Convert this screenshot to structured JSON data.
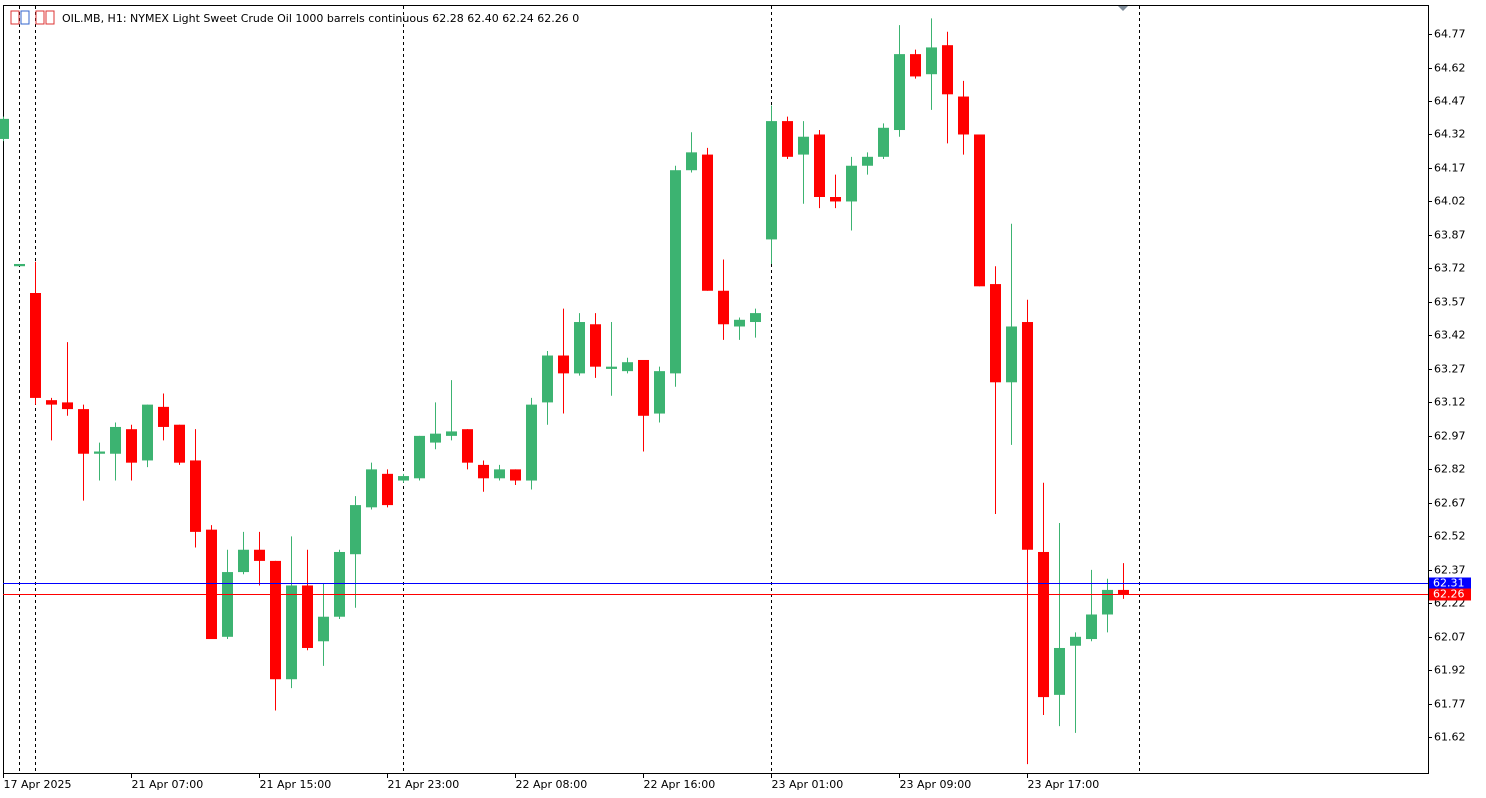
{
  "chart_data": {
    "type": "candlestick",
    "title": "OIL.MB, H1:  NYMEX Light Sweet Crude Oil 1000 barrels continuous  62.28 62.40 62.24 62.26  0",
    "categories": [
      "17 Apr 2025",
      null,
      null,
      null,
      null,
      null,
      null,
      null,
      "21 Apr 07:00",
      null,
      null,
      null,
      null,
      null,
      null,
      null,
      "21 Apr 15:00",
      null,
      null,
      null,
      null,
      null,
      null,
      null,
      "21 Apr 23:00",
      null,
      null,
      null,
      null,
      null,
      null,
      null,
      "22 Apr 08:00",
      null,
      null,
      null,
      null,
      null,
      null,
      null,
      "22 Apr 16:00",
      null,
      null,
      null,
      null,
      null,
      null,
      null,
      "23 Apr 01:00",
      null,
      null,
      null,
      null,
      null,
      null,
      null,
      "23 Apr 09:00",
      null,
      null,
      null,
      null,
      null,
      null,
      null,
      "23 Apr 17:00",
      null,
      null,
      null,
      null,
      null,
      null
    ],
    "open": [
      64.3,
      63.73,
      63.61,
      63.13,
      63.12,
      63.09,
      62.89,
      62.89,
      63.0,
      62.86,
      63.1,
      63.02,
      62.86,
      62.55,
      62.07,
      62.36,
      62.46,
      62.41,
      61.88,
      62.3,
      62.05,
      62.16,
      62.44,
      62.65,
      62.8,
      62.77,
      62.78,
      62.94,
      62.97,
      63.0,
      62.84,
      62.78,
      62.82,
      62.77,
      63.12,
      63.33,
      63.25,
      63.47,
      63.27,
      63.26,
      63.31,
      63.07,
      63.25,
      64.16,
      64.23,
      63.62,
      63.46,
      63.48,
      63.85,
      64.38,
      64.23,
      64.32,
      64.04,
      64.02,
      64.18,
      64.22,
      64.34,
      64.68,
      64.59,
      64.72,
      64.49,
      64.32,
      63.65,
      63.21,
      63.48,
      62.45,
      61.81,
      62.03,
      62.06,
      62.17,
      62.28
    ],
    "high": [
      64.4,
      63.73,
      63.75,
      63.14,
      63.39,
      63.11,
      62.94,
      63.03,
      63.02,
      63.11,
      63.16,
      63.02,
      63.0,
      62.57,
      62.46,
      62.54,
      62.54,
      62.41,
      62.52,
      62.46,
      62.31,
      62.46,
      62.7,
      62.85,
      62.82,
      62.8,
      62.97,
      63.12,
      63.22,
      63.0,
      62.86,
      62.84,
      62.82,
      63.14,
      63.35,
      63.54,
      63.52,
      63.52,
      63.48,
      63.32,
      63.31,
      63.28,
      64.18,
      64.33,
      64.26,
      63.76,
      63.5,
      63.54,
      64.45,
      64.4,
      64.38,
      64.34,
      64.14,
      64.22,
      64.24,
      64.37,
      64.81,
      64.7,
      64.84,
      64.78,
      64.56,
      64.32,
      63.73,
      63.92,
      63.58,
      62.76,
      62.58,
      62.09,
      62.37,
      62.33,
      62.4
    ],
    "low": [
      64.29,
      63.73,
      63.11,
      62.95,
      63.06,
      62.68,
      62.77,
      62.77,
      62.77,
      62.83,
      62.95,
      62.84,
      62.47,
      62.06,
      62.06,
      62.35,
      62.3,
      61.74,
      61.84,
      62.01,
      61.94,
      62.15,
      62.2,
      62.64,
      62.65,
      62.76,
      62.77,
      62.91,
      62.95,
      62.82,
      62.72,
      62.77,
      62.75,
      62.73,
      63.02,
      63.07,
      63.24,
      63.23,
      63.15,
      63.25,
      62.9,
      63.03,
      63.19,
      64.15,
      63.62,
      63.4,
      63.4,
      63.41,
      63.74,
      64.21,
      64.01,
      63.99,
      63.99,
      63.89,
      64.14,
      64.21,
      64.31,
      64.57,
      64.43,
      64.28,
      64.23,
      63.64,
      62.62,
      62.93,
      61.5,
      61.72,
      61.67,
      61.64,
      62.05,
      62.09,
      62.24
    ],
    "close": [
      64.39,
      63.74,
      63.14,
      63.11,
      63.09,
      62.89,
      62.9,
      63.01,
      62.85,
      63.11,
      63.01,
      62.85,
      62.54,
      62.06,
      62.36,
      62.46,
      62.41,
      61.88,
      62.3,
      62.02,
      62.16,
      62.45,
      62.66,
      62.82,
      62.66,
      62.79,
      62.97,
      62.98,
      62.99,
      62.85,
      62.78,
      62.82,
      62.77,
      63.11,
      63.33,
      63.25,
      63.48,
      63.28,
      63.28,
      63.3,
      63.06,
      63.26,
      64.16,
      64.24,
      63.62,
      63.47,
      63.49,
      63.52,
      64.38,
      64.22,
      64.31,
      64.04,
      64.02,
      64.18,
      64.22,
      64.35,
      64.68,
      64.58,
      64.71,
      64.5,
      64.32,
      63.64,
      63.21,
      63.46,
      62.46,
      61.8,
      62.02,
      62.07,
      62.17,
      62.28,
      62.26
    ],
    "up_color": "#3cb371",
    "down_color": "#ff0000",
    "ylim": [
      61.46,
      64.9
    ],
    "yticks": [
      61.62,
      61.77,
      61.92,
      62.07,
      62.22,
      62.37,
      62.52,
      62.67,
      62.82,
      62.97,
      63.12,
      63.27,
      63.42,
      63.57,
      63.72,
      63.87,
      64.02,
      64.17,
      64.32,
      64.47,
      64.62,
      64.77
    ],
    "price_lines": [
      {
        "value": 62.31,
        "color": "#0000ff"
      },
      {
        "value": 62.26,
        "color": "#ff0000"
      }
    ]
  }
}
